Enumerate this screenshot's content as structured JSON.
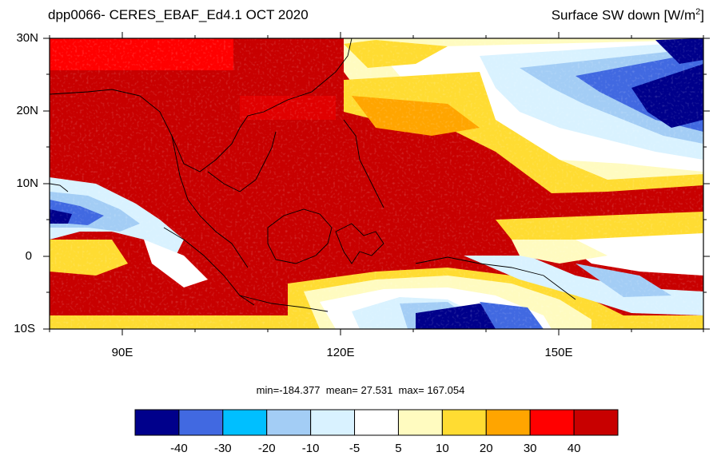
{
  "title_left": "dpp0066- CERES_EBAF_Ed4.1  OCT 2020",
  "title_right": "Surface SW down [W/m",
  "title_right_sup": "2",
  "title_right_close": "]",
  "lat_labels": [
    "30N",
    "20N",
    "10N",
    "0",
    "10S"
  ],
  "lon_labels": [
    "90E",
    "120E",
    "150E"
  ],
  "stats": {
    "min_label": "min=",
    "min": "-184.377",
    "mean_label": "mean=",
    "mean": "27.531",
    "max_label": "max=",
    "max": "167.054"
  },
  "colorbar": {
    "colors": [
      "#00008b",
      "#4169e1",
      "#00bfff",
      "#a3cdf5",
      "#d9f2ff",
      "#ffffff",
      "#fffbc0",
      "#ffdc32",
      "#ffa500",
      "#ff0000",
      "#c80000"
    ],
    "labels": [
      "-40",
      "-30",
      "-20",
      "-10",
      "-5",
      "5",
      "10",
      "20",
      "30",
      "40"
    ]
  }
}
